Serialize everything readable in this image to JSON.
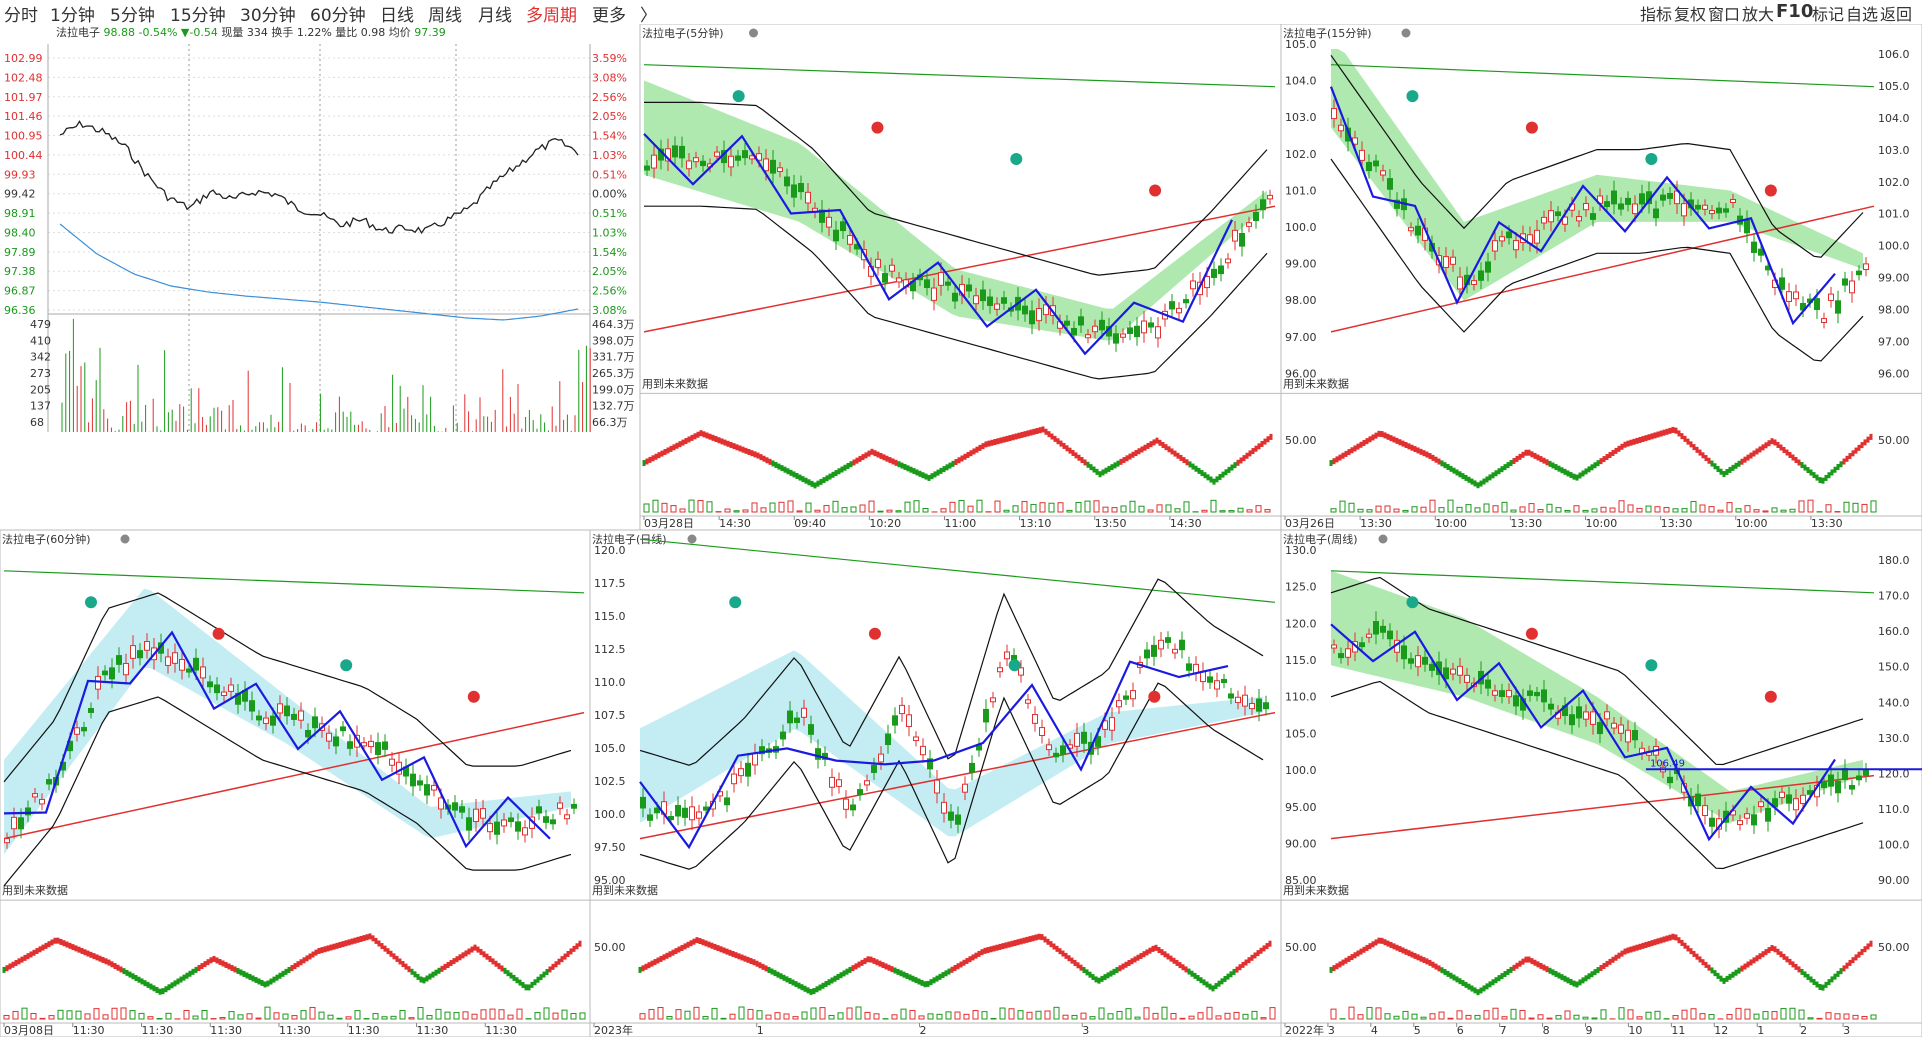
{
  "topbar": {
    "tabs": [
      "分时",
      "1分钟",
      "5分钟",
      "15分钟",
      "30分钟",
      "60分钟",
      "日线",
      "周线",
      "月线",
      "多周期",
      "更多",
      "〉"
    ],
    "active_tab": "多周期",
    "right_tools": [
      "指标",
      "复权",
      "窗口",
      "放大",
      "F10",
      "标记",
      "自选",
      "返回"
    ]
  },
  "colors": {
    "up": "#e03030",
    "down": "#1a9a1a",
    "line_blue": "#1a1ae0",
    "avg_line": "#3b8fd8",
    "band_green": "#8fe08f",
    "band_cyan": "#a9e6ee"
  },
  "intraday": {
    "title": "法拉电子",
    "price": "98.88",
    "change_pct": "-0.54%",
    "change": "▼-0.54",
    "volume_label": "现量",
    "volume": "334",
    "turnover_label": "换手",
    "turnover": "1.22%",
    "vol_ratio_label": "量比",
    "vol_ratio": "0.98",
    "avg_label": "均价",
    "avg": "97.39",
    "price_ticks": [
      "102.99",
      "102.48",
      "101.97",
      "101.46",
      "100.95",
      "100.44",
      "99.93",
      "99.42",
      "98.91",
      "98.40",
      "97.89",
      "97.38",
      "96.87",
      "96.36"
    ],
    "pct_ticks": [
      "3.59%",
      "3.08%",
      "2.56%",
      "2.05%",
      "1.54%",
      "1.03%",
      "0.51%",
      "0.00%",
      "0.51%",
      "1.03%",
      "1.54%",
      "2.05%",
      "2.56%",
      "3.08%"
    ],
    "vol_ticks_left": [
      "479",
      "410",
      "342",
      "273",
      "205",
      "137",
      "68"
    ],
    "vol_ticks_right": [
      "464.3万",
      "398.0万",
      "331.7万",
      "265.3万",
      "199.0万",
      "132.7万",
      "66.3万"
    ]
  },
  "panels": [
    {
      "title": "法拉电子(5分钟)",
      "y_ticks": [],
      "osc_tick": "",
      "x_labels": [
        "03月28日",
        "14:30",
        "09:40",
        "10:20",
        "11:00",
        "13:10",
        "13:50",
        "14:30"
      ],
      "note": "用到未来数据"
    },
    {
      "title": "法拉电子(15分钟)",
      "y_ticks": [
        "105.0",
        "104.0",
        "103.0",
        "102.0",
        "101.0",
        "100.0",
        "99.00",
        "98.00",
        "97.00",
        "96.00"
      ],
      "right_ticks": [
        "106.0",
        "105.0",
        "104.0",
        "103.0",
        "102.0",
        "101.0",
        "100.0",
        "99.00",
        "98.00",
        "97.00",
        "96.00"
      ],
      "osc_tick": "50.00",
      "osc_right_tick": "50.00",
      "x_labels": [
        "03月26日",
        "13:30",
        "10:00",
        "13:30",
        "10:00",
        "13:30",
        "10:00",
        "13:30"
      ],
      "note": "用到未来数据"
    },
    {
      "title": "法拉电子(60分钟)",
      "y_ticks": [],
      "osc_tick": "",
      "x_labels": [
        "03月08日",
        "11:30",
        "11:30",
        "11:30",
        "11:30",
        "11:30",
        "11:30",
        "11:30"
      ],
      "note": "用到未来数据"
    },
    {
      "title": "法拉电子(日线)",
      "y_ticks": [
        "120.0",
        "117.5",
        "115.0",
        "112.5",
        "110.0",
        "107.5",
        "105.0",
        "102.5",
        "100.0",
        "97.50",
        "95.00"
      ],
      "osc_tick": "50.00",
      "x_labels": [
        "2023年",
        "1",
        "2",
        "3"
      ],
      "note": "用到未来数据"
    },
    {
      "title": "法拉电子(周线)",
      "y_ticks": [
        "130.0",
        "125.0",
        "120.0",
        "115.0",
        "110.0",
        "105.0",
        "100.0",
        "95.00",
        "90.00",
        "85.00"
      ],
      "right_ticks": [
        "180.0",
        "170.0",
        "160.0",
        "150.0",
        "140.0",
        "130.0",
        "120.0",
        "110.0",
        "100.0",
        "90.00"
      ],
      "osc_tick": "50.00",
      "osc_right_tick": "50.00",
      "x_labels": [
        "2022年",
        "3",
        "4",
        "5",
        "6",
        "7",
        "8",
        "9",
        "10",
        "11",
        "12",
        "1",
        "2",
        "3"
      ],
      "note": "用到未来数据",
      "marker_label": "106.49"
    }
  ]
}
